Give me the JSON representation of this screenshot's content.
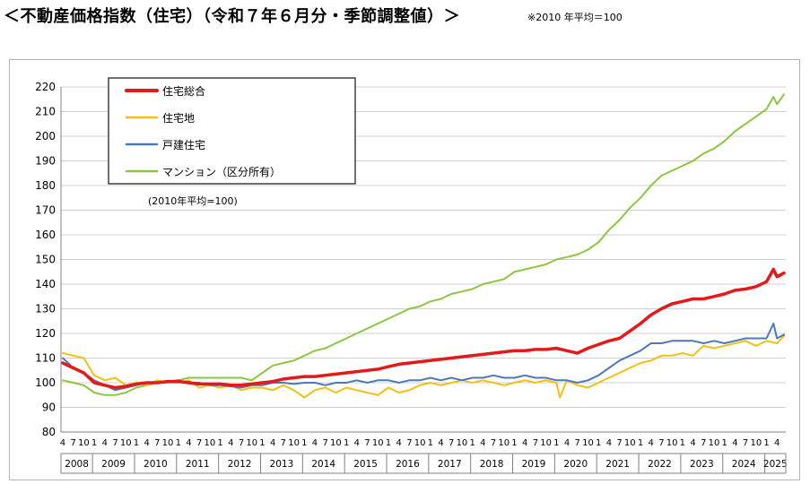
{
  "header": {
    "title": "＜不動産価格指数（住宅）（令和７年６月分・季節調整値）＞",
    "note": "※2010 年平均＝100"
  },
  "chart_data": {
    "type": "line",
    "title": "",
    "xlabel": "",
    "ylabel": "",
    "ylim": [
      80,
      220
    ],
    "y_ticks": [
      80,
      90,
      100,
      110,
      120,
      130,
      140,
      150,
      160,
      170,
      180,
      190,
      200,
      210,
      220
    ],
    "x_start": "2008-04",
    "x_end": "2025-06",
    "month_ticks": [
      "1",
      "4",
      "7",
      "10"
    ],
    "years": [
      "2008",
      "2009",
      "2010",
      "2011",
      "2012",
      "2013",
      "2014",
      "2015",
      "2016",
      "2017",
      "2018",
      "2019",
      "2020",
      "2021",
      "2022",
      "2023",
      "2024",
      "2025"
    ],
    "grid": "horizontal",
    "legend_position": "top-left",
    "inner_note": "(2010年平均=100)",
    "series": [
      {
        "name": "住宅総合",
        "color": "#e31a1c",
        "points": [
          [
            "2008-04",
            108
          ],
          [
            "2008-07",
            106
          ],
          [
            "2008-10",
            104
          ],
          [
            "2009-01",
            100
          ],
          [
            "2009-04",
            99
          ],
          [
            "2009-07",
            98
          ],
          [
            "2009-10",
            98.5
          ],
          [
            "2010-01",
            99.5
          ],
          [
            "2010-04",
            100
          ],
          [
            "2010-07",
            100
          ],
          [
            "2010-10",
            100.5
          ],
          [
            "2011-01",
            100.5
          ],
          [
            "2011-04",
            100
          ],
          [
            "2011-07",
            99.5
          ],
          [
            "2011-10",
            99.5
          ],
          [
            "2012-01",
            99.5
          ],
          [
            "2012-04",
            99
          ],
          [
            "2012-07",
            99
          ],
          [
            "2012-10",
            99.5
          ],
          [
            "2013-01",
            100
          ],
          [
            "2013-04",
            100.5
          ],
          [
            "2013-07",
            101.5
          ],
          [
            "2013-10",
            102
          ],
          [
            "2014-01",
            102.5
          ],
          [
            "2014-04",
            102.5
          ],
          [
            "2014-07",
            103
          ],
          [
            "2014-10",
            103.5
          ],
          [
            "2015-01",
            104
          ],
          [
            "2015-04",
            104.5
          ],
          [
            "2015-07",
            105
          ],
          [
            "2015-10",
            105.5
          ],
          [
            "2016-01",
            106.5
          ],
          [
            "2016-04",
            107.5
          ],
          [
            "2016-07",
            108
          ],
          [
            "2016-10",
            108.5
          ],
          [
            "2017-01",
            109
          ],
          [
            "2017-04",
            109.5
          ],
          [
            "2017-07",
            110
          ],
          [
            "2017-10",
            110.5
          ],
          [
            "2018-01",
            111
          ],
          [
            "2018-04",
            111.5
          ],
          [
            "2018-07",
            112
          ],
          [
            "2018-10",
            112.5
          ],
          [
            "2019-01",
            113
          ],
          [
            "2019-04",
            113
          ],
          [
            "2019-07",
            113.5
          ],
          [
            "2019-10",
            113.5
          ],
          [
            "2020-01",
            114
          ],
          [
            "2020-04",
            113
          ],
          [
            "2020-07",
            112
          ],
          [
            "2020-10",
            114
          ],
          [
            "2021-01",
            115.5
          ],
          [
            "2021-04",
            117
          ],
          [
            "2021-07",
            118
          ],
          [
            "2021-10",
            121
          ],
          [
            "2022-01",
            124
          ],
          [
            "2022-04",
            127.5
          ],
          [
            "2022-07",
            130
          ],
          [
            "2022-10",
            132
          ],
          [
            "2023-01",
            133
          ],
          [
            "2023-04",
            134
          ],
          [
            "2023-07",
            134
          ],
          [
            "2023-10",
            135
          ],
          [
            "2024-01",
            136
          ],
          [
            "2024-04",
            137.5
          ],
          [
            "2024-07",
            138
          ],
          [
            "2024-10",
            139
          ],
          [
            "2025-01",
            141
          ],
          [
            "2025-03",
            146
          ],
          [
            "2025-04",
            143
          ],
          [
            "2025-06",
            144.5
          ]
        ]
      },
      {
        "name": "住宅地",
        "color": "#f2c012",
        "points": [
          [
            "2008-04",
            112
          ],
          [
            "2008-07",
            111
          ],
          [
            "2008-10",
            110
          ],
          [
            "2009-01",
            103
          ],
          [
            "2009-04",
            101
          ],
          [
            "2009-07",
            102
          ],
          [
            "2009-10",
            99
          ],
          [
            "2010-01",
            100
          ],
          [
            "2010-04",
            99
          ],
          [
            "2010-07",
            101
          ],
          [
            "2010-10",
            100
          ],
          [
            "2011-01",
            100
          ],
          [
            "2011-04",
            101
          ],
          [
            "2011-07",
            98
          ],
          [
            "2011-10",
            99
          ],
          [
            "2012-01",
            98
          ],
          [
            "2012-04",
            99
          ],
          [
            "2012-07",
            97
          ],
          [
            "2012-10",
            98
          ],
          [
            "2013-01",
            98
          ],
          [
            "2013-04",
            97
          ],
          [
            "2013-07",
            99
          ],
          [
            "2013-10",
            97
          ],
          [
            "2014-01",
            94
          ],
          [
            "2014-04",
            97
          ],
          [
            "2014-07",
            98
          ],
          [
            "2014-10",
            96
          ],
          [
            "2015-01",
            98
          ],
          [
            "2015-04",
            97
          ],
          [
            "2015-07",
            96
          ],
          [
            "2015-10",
            95
          ],
          [
            "2016-01",
            98
          ],
          [
            "2016-04",
            96
          ],
          [
            "2016-07",
            97
          ],
          [
            "2016-10",
            99
          ],
          [
            "2017-01",
            100
          ],
          [
            "2017-04",
            99
          ],
          [
            "2017-07",
            100
          ],
          [
            "2017-10",
            101
          ],
          [
            "2018-01",
            100
          ],
          [
            "2018-04",
            101
          ],
          [
            "2018-07",
            100
          ],
          [
            "2018-10",
            99
          ],
          [
            "2019-01",
            100
          ],
          [
            "2019-04",
            101
          ],
          [
            "2019-07",
            100
          ],
          [
            "2019-10",
            101
          ],
          [
            "2020-01",
            100
          ],
          [
            "2020-02",
            94
          ],
          [
            "2020-04",
            101
          ],
          [
            "2020-07",
            99
          ],
          [
            "2020-10",
            98
          ],
          [
            "2021-01",
            100
          ],
          [
            "2021-04",
            102
          ],
          [
            "2021-07",
            104
          ],
          [
            "2021-10",
            106
          ],
          [
            "2022-01",
            108
          ],
          [
            "2022-04",
            109
          ],
          [
            "2022-07",
            111
          ],
          [
            "2022-10",
            111
          ],
          [
            "2023-01",
            112
          ],
          [
            "2023-04",
            111
          ],
          [
            "2023-07",
            115
          ],
          [
            "2023-10",
            114
          ],
          [
            "2024-01",
            115
          ],
          [
            "2024-04",
            116
          ],
          [
            "2024-07",
            117
          ],
          [
            "2024-10",
            115
          ],
          [
            "2025-01",
            117
          ],
          [
            "2025-04",
            116
          ],
          [
            "2025-06",
            119
          ]
        ]
      },
      {
        "name": "戸建住宅",
        "color": "#4e79b8",
        "points": [
          [
            "2008-04",
            110
          ],
          [
            "2008-07",
            106
          ],
          [
            "2008-10",
            104
          ],
          [
            "2009-01",
            101
          ],
          [
            "2009-04",
            99
          ],
          [
            "2009-07",
            97
          ],
          [
            "2009-10",
            98
          ],
          [
            "2010-01",
            99
          ],
          [
            "2010-04",
            100
          ],
          [
            "2010-07",
            100
          ],
          [
            "2010-10",
            100.5
          ],
          [
            "2011-01",
            101
          ],
          [
            "2011-04",
            100
          ],
          [
            "2011-07",
            100
          ],
          [
            "2011-10",
            99
          ],
          [
            "2012-01",
            99
          ],
          [
            "2012-04",
            98.5
          ],
          [
            "2012-07",
            98
          ],
          [
            "2012-10",
            99
          ],
          [
            "2013-01",
            99
          ],
          [
            "2013-04",
            100
          ],
          [
            "2013-07",
            100
          ],
          [
            "2013-10",
            99.5
          ],
          [
            "2014-01",
            100
          ],
          [
            "2014-04",
            100
          ],
          [
            "2014-07",
            99
          ],
          [
            "2014-10",
            100
          ],
          [
            "2015-01",
            100
          ],
          [
            "2015-04",
            101
          ],
          [
            "2015-07",
            100
          ],
          [
            "2015-10",
            101
          ],
          [
            "2016-01",
            101
          ],
          [
            "2016-04",
            100
          ],
          [
            "2016-07",
            101
          ],
          [
            "2016-10",
            101
          ],
          [
            "2017-01",
            102
          ],
          [
            "2017-04",
            101
          ],
          [
            "2017-07",
            102
          ],
          [
            "2017-10",
            101
          ],
          [
            "2018-01",
            102
          ],
          [
            "2018-04",
            102
          ],
          [
            "2018-07",
            103
          ],
          [
            "2018-10",
            102
          ],
          [
            "2019-01",
            102
          ],
          [
            "2019-04",
            103
          ],
          [
            "2019-07",
            102
          ],
          [
            "2019-10",
            102
          ],
          [
            "2020-01",
            101
          ],
          [
            "2020-04",
            101
          ],
          [
            "2020-07",
            100
          ],
          [
            "2020-10",
            101
          ],
          [
            "2021-01",
            103
          ],
          [
            "2021-04",
            106
          ],
          [
            "2021-07",
            109
          ],
          [
            "2021-10",
            111
          ],
          [
            "2022-01",
            113
          ],
          [
            "2022-04",
            116
          ],
          [
            "2022-07",
            116
          ],
          [
            "2022-10",
            117
          ],
          [
            "2023-01",
            117
          ],
          [
            "2023-04",
            117
          ],
          [
            "2023-07",
            116
          ],
          [
            "2023-10",
            117
          ],
          [
            "2024-01",
            116
          ],
          [
            "2024-04",
            117
          ],
          [
            "2024-07",
            118
          ],
          [
            "2024-10",
            118
          ],
          [
            "2025-01",
            118
          ],
          [
            "2025-03",
            124
          ],
          [
            "2025-04",
            118
          ],
          [
            "2025-06",
            119.5
          ]
        ]
      },
      {
        "name": "マンション（区分所有）",
        "color": "#8dc63f",
        "points": [
          [
            "2008-04",
            101
          ],
          [
            "2008-07",
            100
          ],
          [
            "2008-10",
            99
          ],
          [
            "2009-01",
            96
          ],
          [
            "2009-04",
            95
          ],
          [
            "2009-07",
            95
          ],
          [
            "2009-10",
            96
          ],
          [
            "2010-01",
            98
          ],
          [
            "2010-04",
            99
          ],
          [
            "2010-07",
            100
          ],
          [
            "2010-10",
            100
          ],
          [
            "2011-01",
            101
          ],
          [
            "2011-04",
            102
          ],
          [
            "2011-07",
            102
          ],
          [
            "2011-10",
            102
          ],
          [
            "2012-01",
            102
          ],
          [
            "2012-04",
            102
          ],
          [
            "2012-07",
            102
          ],
          [
            "2012-10",
            101
          ],
          [
            "2013-01",
            104
          ],
          [
            "2013-04",
            107
          ],
          [
            "2013-07",
            108
          ],
          [
            "2013-10",
            109
          ],
          [
            "2014-01",
            111
          ],
          [
            "2014-04",
            113
          ],
          [
            "2014-07",
            114
          ],
          [
            "2014-10",
            116
          ],
          [
            "2015-01",
            118
          ],
          [
            "2015-04",
            120
          ],
          [
            "2015-07",
            122
          ],
          [
            "2015-10",
            124
          ],
          [
            "2016-01",
            126
          ],
          [
            "2016-04",
            128
          ],
          [
            "2016-07",
            130
          ],
          [
            "2016-10",
            131
          ],
          [
            "2017-01",
            133
          ],
          [
            "2017-04",
            134
          ],
          [
            "2017-07",
            136
          ],
          [
            "2017-10",
            137
          ],
          [
            "2018-01",
            138
          ],
          [
            "2018-04",
            140
          ],
          [
            "2018-07",
            141
          ],
          [
            "2018-10",
            142
          ],
          [
            "2019-01",
            145
          ],
          [
            "2019-04",
            146
          ],
          [
            "2019-07",
            147
          ],
          [
            "2019-10",
            148
          ],
          [
            "2020-01",
            150
          ],
          [
            "2020-04",
            151
          ],
          [
            "2020-07",
            152
          ],
          [
            "2020-10",
            154
          ],
          [
            "2021-01",
            157
          ],
          [
            "2021-04",
            162
          ],
          [
            "2021-07",
            166
          ],
          [
            "2021-10",
            171
          ],
          [
            "2022-01",
            175
          ],
          [
            "2022-04",
            180
          ],
          [
            "2022-07",
            184
          ],
          [
            "2022-10",
            186
          ],
          [
            "2023-01",
            188
          ],
          [
            "2023-04",
            190
          ],
          [
            "2023-07",
            193
          ],
          [
            "2023-10",
            195
          ],
          [
            "2024-01",
            198
          ],
          [
            "2024-04",
            202
          ],
          [
            "2024-07",
            205
          ],
          [
            "2024-10",
            208
          ],
          [
            "2025-01",
            211
          ],
          [
            "2025-03",
            216
          ],
          [
            "2025-04",
            213
          ],
          [
            "2025-06",
            217
          ]
        ]
      }
    ]
  }
}
